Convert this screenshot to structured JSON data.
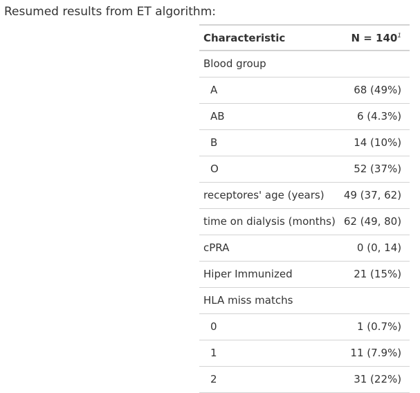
{
  "heading": "Resumed results from ET algorithm:",
  "table": {
    "header": {
      "characteristic": "Characteristic",
      "n_label": "N = 140",
      "n_footnote": "1"
    },
    "rows": [
      {
        "label": "Blood group",
        "value": "",
        "indent": false
      },
      {
        "label": "A",
        "value": "68 (49%)",
        "indent": true
      },
      {
        "label": "AB",
        "value": "6 (4.3%)",
        "indent": true
      },
      {
        "label": "B",
        "value": "14 (10%)",
        "indent": true
      },
      {
        "label": "O",
        "value": "52 (37%)",
        "indent": true
      },
      {
        "label": "receptores' age (years)",
        "value": "49 (37, 62)",
        "indent": false
      },
      {
        "label": "time on dialysis (months)",
        "value": "62 (49, 80)",
        "indent": false
      },
      {
        "label": "cPRA",
        "value": "0 (0, 14)",
        "indent": false
      },
      {
        "label": "Hiper Immunized",
        "value": "21 (15%)",
        "indent": false
      },
      {
        "label": "HLA miss matchs",
        "value": "",
        "indent": false
      },
      {
        "label": "0",
        "value": "1 (0.7%)",
        "indent": true
      },
      {
        "label": "1",
        "value": "11 (7.9%)",
        "indent": true
      },
      {
        "label": "2",
        "value": "31 (22%)",
        "indent": true
      }
    ]
  }
}
